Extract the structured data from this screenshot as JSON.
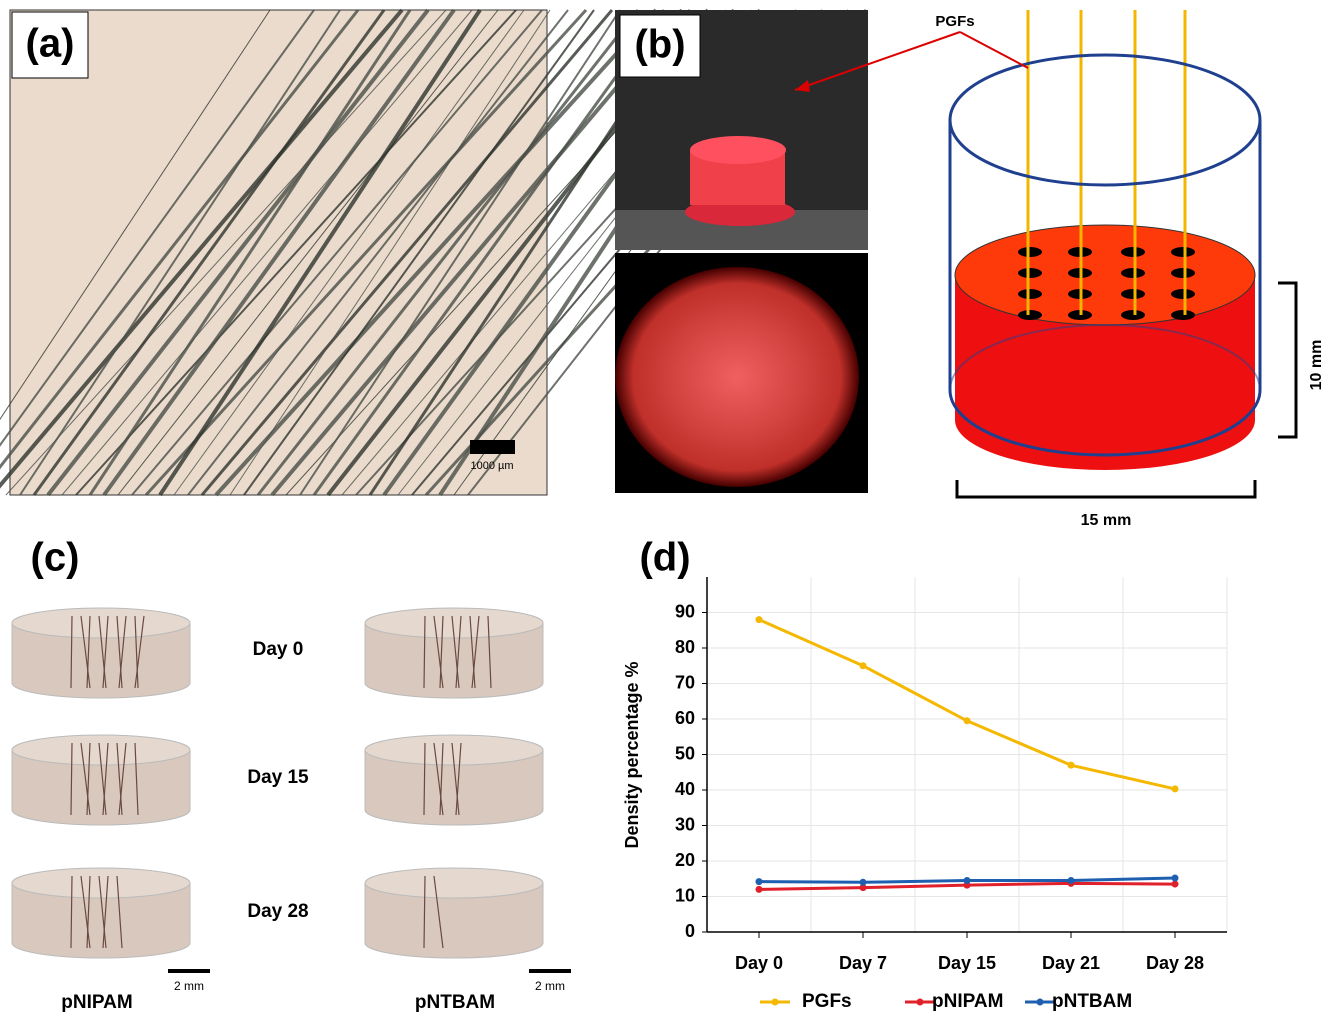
{
  "panels": {
    "a": {
      "label": "(a)",
      "scale_bar": "1000 µm"
    },
    "b": {
      "label": "(b)",
      "pointer": "PGFs",
      "height": "10 mm",
      "width": "15 mm"
    },
    "c": {
      "label": "(c)",
      "days": [
        "Day 0",
        "Day 15",
        "Day 28"
      ],
      "columns": [
        "pNIPAM",
        "pNTBAM"
      ],
      "scale_bars": [
        "2 mm",
        "2 mm"
      ]
    },
    "d": {
      "label": "(d)"
    }
  },
  "chart_data": {
    "type": "line",
    "ylabel": "Density percentage %",
    "categories": [
      "Day 0",
      "Day 7",
      "Day 15",
      "Day 21",
      "Day 28"
    ],
    "series": [
      {
        "name": "PGFs",
        "color": "#f5b800",
        "values": [
          88,
          75,
          59.5,
          47,
          40.3
        ]
      },
      {
        "name": "pNIPAM",
        "color": "#e0202a",
        "values": [
          12,
          12.5,
          13.2,
          13.7,
          13.5
        ]
      },
      {
        "name": "pNTBAM",
        "color": "#1f5fb0",
        "values": [
          14.2,
          14,
          14.5,
          14.5,
          15.2
        ]
      }
    ],
    "ylim": [
      0,
      100
    ],
    "yticks": [
      0,
      10,
      20,
      30,
      40,
      50,
      60,
      70,
      80,
      90
    ],
    "grid": true,
    "legend": "bottom"
  }
}
